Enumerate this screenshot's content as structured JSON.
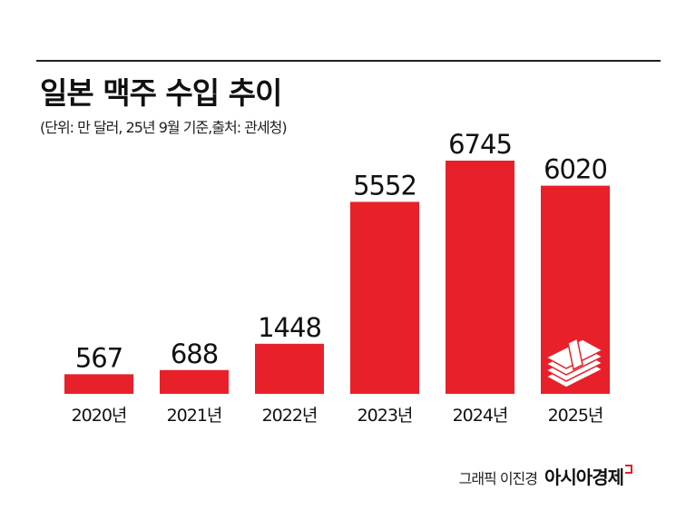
{
  "chart_data": {
    "type": "bar",
    "title": "일본 맥주 수입 추이",
    "subtitle": "(단위: 만 달러, 25년 9월 기준,출처: 관세청)",
    "categories": [
      "2020년",
      "2021년",
      "2022년",
      "2023년",
      "2024년",
      "2025년"
    ],
    "values": [
      567,
      688,
      1448,
      5552,
      6745,
      6020
    ],
    "value_labels": [
      "567",
      "688",
      "1448",
      "5552",
      "6745",
      "6020"
    ],
    "ylim": [
      0,
      6745
    ],
    "grid": false,
    "bar_color": "#e8202a",
    "icon": "money-stack-icon"
  },
  "credit": {
    "author": "그래픽 이진경",
    "publisher": "아시아경제"
  }
}
